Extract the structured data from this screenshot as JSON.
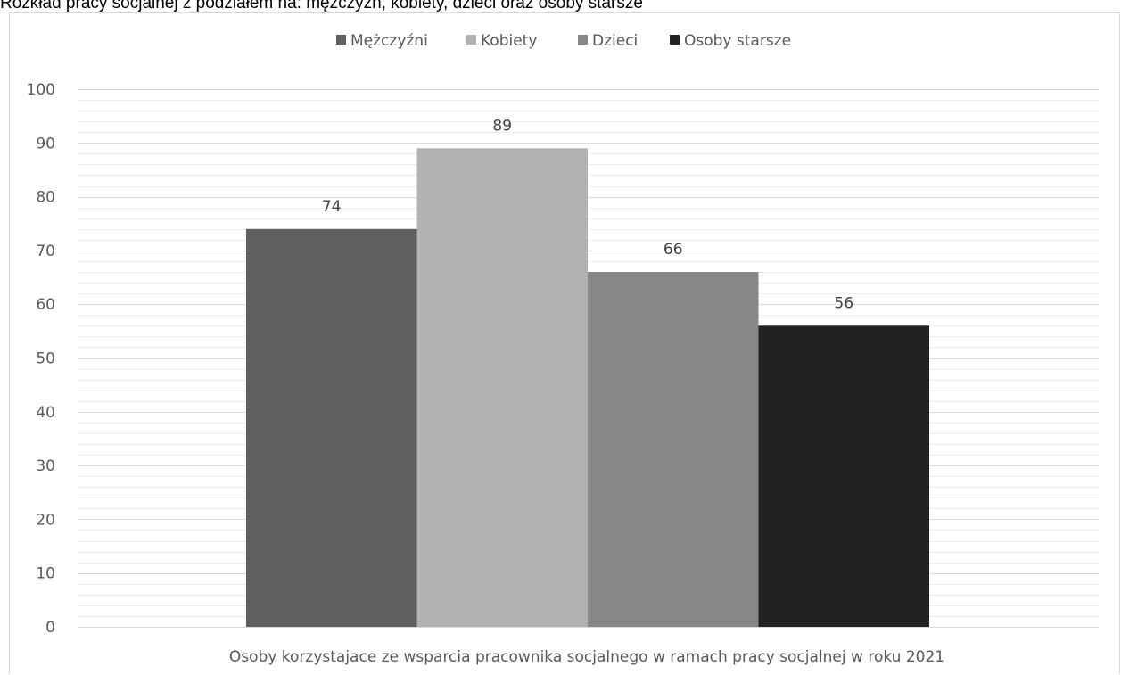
{
  "title": "Rozkład pracy socjalnej z podziałem na: mężczyzn, kobiety, dzieci oraz osoby starsze",
  "colors": {
    "Mężczyźni": "#5f5f5f",
    "Kobiety": "#b2b2b2",
    "Dzieci": "#878787",
    "Osoby starsze": "#222222",
    "grid_major": "#d9d9d9",
    "grid_minor": "#ececec"
  },
  "chart_data": {
    "type": "bar",
    "title": "Rozkład pracy socjalnej z podziałem na: mężczyzn, kobiety, dzieci oraz osoby starsze",
    "categories": [
      "Osoby korzystajace ze wsparcia pracownika socjalnego w ramach pracy socjalnej w roku 2021"
    ],
    "series": [
      {
        "name": "Mężczyźni",
        "values": [
          74
        ]
      },
      {
        "name": "Kobiety",
        "values": [
          89
        ]
      },
      {
        "name": "Dzieci",
        "values": [
          66
        ]
      },
      {
        "name": "Osoby starsze",
        "values": [
          56
        ]
      }
    ],
    "ylim": [
      0,
      100
    ],
    "yticks": [
      0,
      10,
      20,
      30,
      40,
      50,
      60,
      70,
      80,
      90,
      100
    ],
    "xlabel": "",
    "ylabel": "",
    "grid": true,
    "legend": "top-center",
    "data_labels": true
  }
}
